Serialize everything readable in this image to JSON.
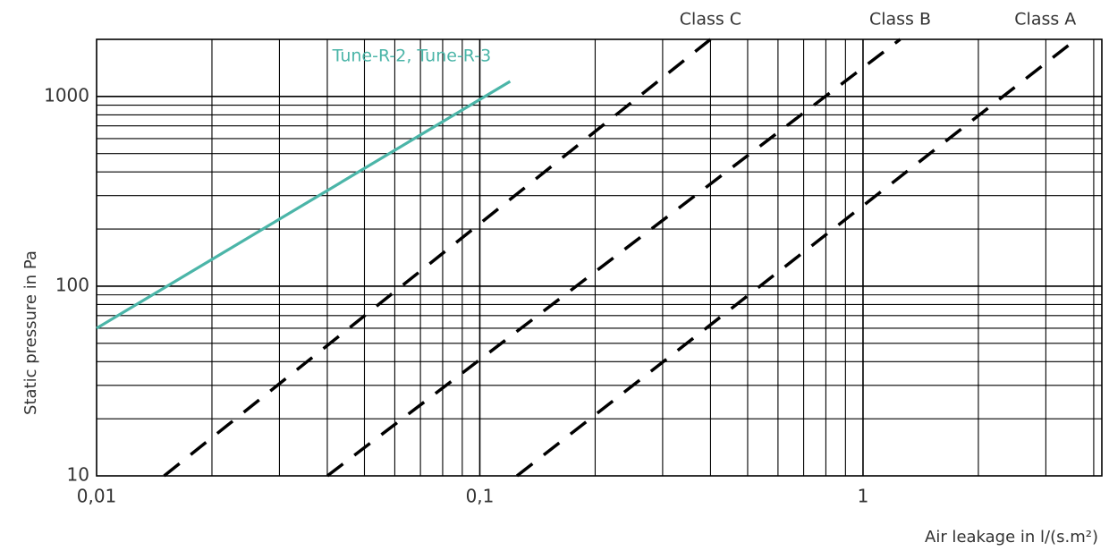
{
  "chart_data": {
    "type": "line",
    "xlabel": "Air leakage in l/(s.m²)",
    "ylabel": "Static pressure in Pa",
    "xscale": "log",
    "yscale": "log",
    "xlim": [
      0.01,
      4.2
    ],
    "ylim": [
      10,
      2000
    ],
    "xticks": [
      {
        "value": 0.01,
        "label": "0,01"
      },
      {
        "value": 0.1,
        "label": "0,1"
      },
      {
        "value": 1,
        "label": "1"
      }
    ],
    "yticks": [
      {
        "value": 10,
        "label": "10"
      },
      {
        "value": 100,
        "label": "100"
      },
      {
        "value": 1000,
        "label": "1000"
      }
    ],
    "grid": true,
    "series": [
      {
        "name": "Tune-R-2, Tune-R-3",
        "style": "solid",
        "color": "#4bb5a8",
        "x": [
          0.01,
          0.12
        ],
        "y": [
          60,
          1200
        ]
      },
      {
        "name": "Class C",
        "style": "dashed",
        "color": "#000000",
        "x": [
          0.015,
          0.4
        ],
        "y": [
          10,
          2000
        ]
      },
      {
        "name": "Class B",
        "style": "dashed",
        "color": "#000000",
        "x": [
          0.04,
          1.25
        ],
        "y": [
          10,
          2000
        ]
      },
      {
        "name": "Class A",
        "style": "dashed",
        "color": "#000000",
        "x": [
          0.125,
          3.6
        ],
        "y": [
          10,
          2000
        ]
      }
    ]
  }
}
